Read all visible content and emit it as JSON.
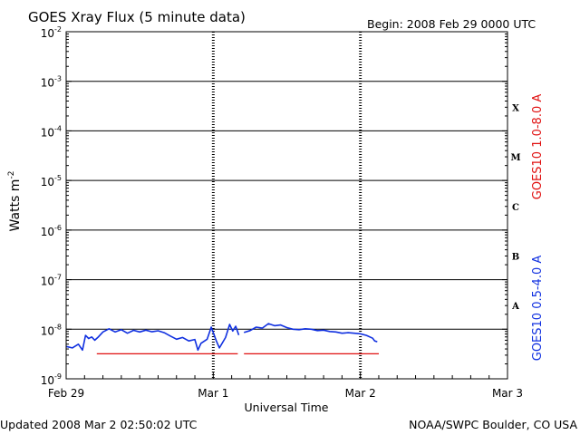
{
  "header": {
    "title": "GOES Xray Flux (5 minute data)",
    "begin": "Begin:  2008 Feb 29 0000 UTC"
  },
  "footer": {
    "updated": "Updated 2008 Mar  2 02:50:02 UTC",
    "source": "NOAA/SWPC Boulder, CO USA"
  },
  "chart_data": {
    "type": "line",
    "title": "GOES Xray Flux (5 minute data)",
    "xlabel": "Universal Time",
    "ylabel": "Watts m",
    "ylabel_sup": "-2",
    "yscale": "log",
    "ylim": [
      1e-09,
      0.01
    ],
    "xlim": [
      "2008-02-29 00:00",
      "2008-03-03 00:00"
    ],
    "x_ticks": [
      "Feb 29",
      "Mar 1",
      "Mar 2",
      "Mar 3"
    ],
    "y_ticks": [
      {
        "base": "10",
        "exp": "-2",
        "value": 0.01
      },
      {
        "base": "10",
        "exp": "-3",
        "value": 0.001
      },
      {
        "base": "10",
        "exp": "-4",
        "value": 0.0001
      },
      {
        "base": "10",
        "exp": "-5",
        "value": 1e-05
      },
      {
        "base": "10",
        "exp": "-6",
        "value": 1e-06
      },
      {
        "base": "10",
        "exp": "-7",
        "value": 1e-07
      },
      {
        "base": "10",
        "exp": "-8",
        "value": 1e-08
      },
      {
        "base": "10",
        "exp": "-9",
        "value": 1e-09
      }
    ],
    "flare_classes": [
      {
        "label": "X",
        "value": 0.0003
      },
      {
        "label": "M",
        "value": 3e-05
      },
      {
        "label": "C",
        "value": 3e-06
      },
      {
        "label": "B",
        "value": 3e-07
      },
      {
        "label": "A",
        "value": 3e-08
      }
    ],
    "grid": true,
    "series": [
      {
        "name": "GOES10 1.0-8.0 A",
        "color": "#e01010",
        "segments": [
          [
            [
              "2008-02-29 05:00",
              3.2e-09
            ],
            [
              "2008-03-01 04:00",
              3.2e-09
            ]
          ],
          [
            [
              "2008-03-01 05:00",
              3.2e-09
            ],
            [
              "2008-03-02 03:00",
              3.2e-09
            ]
          ]
        ]
      },
      {
        "name": "GOES10 0.5-4.0 A",
        "color": "#1030e0",
        "segments": [
          [
            [
              "2008-02-29 00:00",
              4.5e-09
            ],
            [
              "2008-02-29 01:00",
              4.2e-09
            ],
            [
              "2008-02-29 02:00",
              5e-09
            ],
            [
              "2008-02-29 02:40",
              3.8e-09
            ],
            [
              "2008-02-29 03:10",
              7.5e-09
            ],
            [
              "2008-02-29 03:40",
              6.5e-09
            ],
            [
              "2008-02-29 04:10",
              7e-09
            ],
            [
              "2008-02-29 04:40",
              6e-09
            ],
            [
              "2008-02-29 05:10",
              6.8e-09
            ],
            [
              "2008-02-29 06:00",
              8.8e-09
            ],
            [
              "2008-02-29 07:00",
              1.02e-08
            ],
            [
              "2008-02-29 08:00",
              8.8e-09
            ],
            [
              "2008-02-29 09:00",
              9.8e-09
            ],
            [
              "2008-02-29 10:00",
              8.3e-09
            ],
            [
              "2008-02-29 11:00",
              9.5e-09
            ],
            [
              "2008-02-29 12:00",
              8.8e-09
            ],
            [
              "2008-02-29 13:00",
              9.6e-09
            ],
            [
              "2008-02-29 14:00",
              8.9e-09
            ],
            [
              "2008-02-29 15:00",
              9.3e-09
            ],
            [
              "2008-02-29 16:00",
              8.5e-09
            ],
            [
              "2008-02-29 17:00",
              7.3e-09
            ],
            [
              "2008-02-29 18:00",
              6.3e-09
            ],
            [
              "2008-02-29 19:00",
              6.8e-09
            ],
            [
              "2008-02-29 20:00",
              5.8e-09
            ],
            [
              "2008-02-29 21:00",
              6.2e-09
            ],
            [
              "2008-02-29 21:30",
              3.8e-09
            ],
            [
              "2008-02-29 22:00",
              5.2e-09
            ],
            [
              "2008-02-29 23:00",
              6.3e-09
            ],
            [
              "2008-02-29 23:40",
              1.1e-08
            ],
            [
              "2008-03-01 00:30",
              5.8e-09
            ],
            [
              "2008-03-01 01:00",
              4.2e-09
            ],
            [
              "2008-03-01 02:00",
              6.8e-09
            ],
            [
              "2008-03-01 02:40",
              1.25e-08
            ],
            [
              "2008-03-01 03:10",
              9.2e-09
            ],
            [
              "2008-03-01 03:40",
              1.15e-08
            ],
            [
              "2008-03-01 04:10",
              7.6e-09
            ]
          ],
          [
            [
              "2008-03-01 05:00",
              8.6e-09
            ],
            [
              "2008-03-01 06:00",
              9.4e-09
            ],
            [
              "2008-03-01 07:00",
              1.1e-08
            ],
            [
              "2008-03-01 08:00",
              1.05e-08
            ],
            [
              "2008-03-01 09:00",
              1.3e-08
            ],
            [
              "2008-03-01 10:00",
              1.18e-08
            ],
            [
              "2008-03-01 11:00",
              1.22e-08
            ],
            [
              "2008-03-01 12:00",
              1.08e-08
            ],
            [
              "2008-03-01 13:00",
              1e-08
            ],
            [
              "2008-03-01 14:00",
              9.8e-09
            ],
            [
              "2008-03-01 15:00",
              1.02e-08
            ],
            [
              "2008-03-01 16:00",
              1e-08
            ],
            [
              "2008-03-01 17:00",
              9.4e-09
            ],
            [
              "2008-03-01 18:00",
              9.6e-09
            ],
            [
              "2008-03-01 19:00",
              9e-09
            ],
            [
              "2008-03-01 20:00",
              8.8e-09
            ],
            [
              "2008-03-01 21:00",
              8.3e-09
            ],
            [
              "2008-03-01 22:00",
              8.5e-09
            ],
            [
              "2008-03-01 23:00",
              8.3e-09
            ],
            [
              "2008-03-02 00:00",
              8.1e-09
            ],
            [
              "2008-03-02 01:00",
              7.5e-09
            ],
            [
              "2008-03-02 02:00",
              6.6e-09
            ],
            [
              "2008-03-02 02:20",
              5.8e-09
            ],
            [
              "2008-03-02 02:45",
              5.6e-09
            ]
          ]
        ]
      }
    ]
  }
}
